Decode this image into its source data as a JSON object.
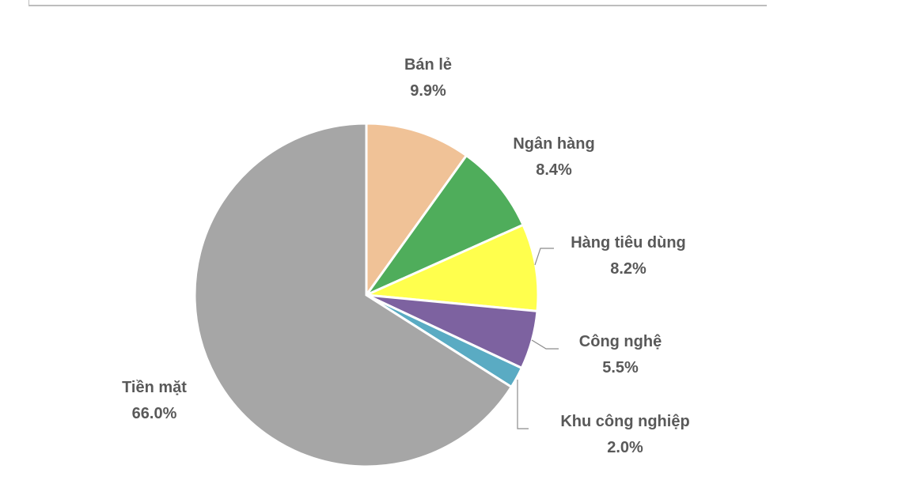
{
  "chart_data": {
    "type": "pie",
    "start": "12 o'clock, clockwise",
    "slices": [
      {
        "label": "Bán lẻ",
        "value": 9.9,
        "display": "9.9%",
        "color": "#f0c297"
      },
      {
        "label": "Ngân hàng",
        "value": 8.4,
        "display": "8.4%",
        "color": "#4fad5b"
      },
      {
        "label": "Hàng tiêu dùng",
        "value": 8.2,
        "display": "8.2%",
        "color": "#ffff4d"
      },
      {
        "label": "Công nghệ",
        "value": 5.5,
        "display": "5.5%",
        "color": "#7d62a0"
      },
      {
        "label": "Khu công nghiệp",
        "value": 2.0,
        "display": "2.0%",
        "color": "#5aabc3"
      },
      {
        "label": "Tiền mặt",
        "value": 66.0,
        "display": "66.0%",
        "color": "#a6a6a6"
      }
    ],
    "legend": "none (data labels outside slices)"
  }
}
